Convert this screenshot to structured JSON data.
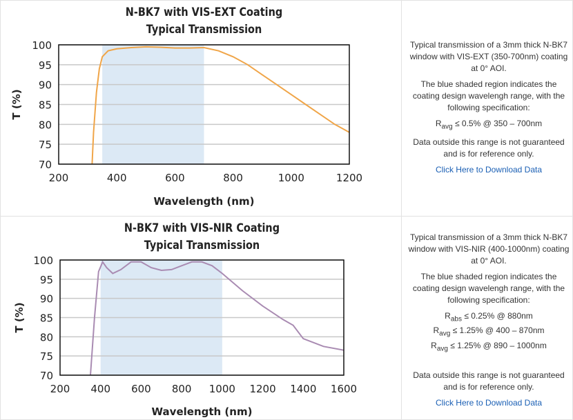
{
  "chart_data": [
    {
      "type": "line",
      "title": "N-BK7 with VIS-EXT Coating",
      "subtitle": "Typical Transmission",
      "x_label": "Wavelength (nm)",
      "y_label": "T (%)",
      "x": [
        315,
        320,
        330,
        340,
        350,
        370,
        400,
        450,
        500,
        550,
        600,
        650,
        700,
        750,
        800,
        850,
        900,
        950,
        1000,
        1050,
        1100,
        1150,
        1200
      ],
      "values": [
        70,
        78,
        88,
        94,
        97,
        98.5,
        99,
        99.3,
        99.5,
        99.4,
        99.2,
        99.2,
        99.3,
        98.5,
        97,
        95,
        92.5,
        90,
        87.5,
        85,
        82.5,
        80,
        78
      ],
      "color": "#f0a548",
      "shaded_range": [
        350,
        700
      ],
      "shade_color": "#dce9f5",
      "xlim": [
        200,
        1200
      ],
      "xticks": [
        200,
        400,
        600,
        800,
        1000,
        1200
      ],
      "ylim": [
        70,
        100
      ],
      "yticks": [
        70,
        75,
        80,
        85,
        90,
        95,
        100
      ],
      "grid": true
    },
    {
      "type": "line",
      "title": "N-BK7 with VIS-NIR Coating",
      "subtitle": "Typical Transmission",
      "x_label": "Wavelength (nm)",
      "y_label": "T (%)",
      "x": [
        350,
        370,
        390,
        410,
        430,
        460,
        500,
        550,
        600,
        650,
        700,
        750,
        800,
        850,
        900,
        950,
        1000,
        1100,
        1200,
        1300,
        1350,
        1400,
        1450,
        1500,
        1600
      ],
      "values": [
        70,
        85,
        97,
        99.5,
        98,
        96.5,
        97.5,
        99.5,
        99.5,
        98,
        97.3,
        97.5,
        98.5,
        99.5,
        99.5,
        98.5,
        96.5,
        92,
        88,
        84.5,
        83,
        79.5,
        78.5,
        77.5,
        76.5
      ],
      "color": "#a98bb2",
      "shaded_range": [
        400,
        1000
      ],
      "shade_color": "#dce9f5",
      "xlim": [
        200,
        1600
      ],
      "xticks": [
        200,
        400,
        600,
        800,
        1000,
        1200,
        1400,
        1600
      ],
      "ylim": [
        70,
        100
      ],
      "yticks": [
        70,
        75,
        80,
        85,
        90,
        95,
        100
      ],
      "grid": true
    }
  ],
  "descriptions": [
    {
      "paragraphs": [
        "Typical transmission of a 3mm thick N-BK7 window with VIS-EXT (350-700nm) coating at 0° AOI.",
        "The blue shaded region indicates the coating design wavelengh range, with the following specification:"
      ],
      "specs": [
        {
          "symbol": "R",
          "sub": "avg",
          "text": "≤ 0.5% @ 350 – 700nm"
        }
      ],
      "note": "Data outside this range is not guaranteed and is for reference only.",
      "link": "Click Here to Download Data"
    },
    {
      "paragraphs": [
        "Typical transmission of a 3mm thick N-BK7 window with VIS-NIR (400-1000nm) coating at 0° AOI.",
        "The blue shaded region indicates the coating design wavelengh range, with the following specification:"
      ],
      "specs": [
        {
          "symbol": "R",
          "sub": "abs",
          "text": "≤ 0.25% @ 880nm"
        },
        {
          "symbol": "R",
          "sub": "avg",
          "text": "≤ 1.25% @ 400 – 870nm"
        },
        {
          "symbol": "R",
          "sub": "avg",
          "text": "≤ 1.25% @ 890 – 1000nm"
        }
      ],
      "note": "Data outside this range is not guaranteed and is for reference only.",
      "link": "Click Here to Download Data"
    }
  ]
}
